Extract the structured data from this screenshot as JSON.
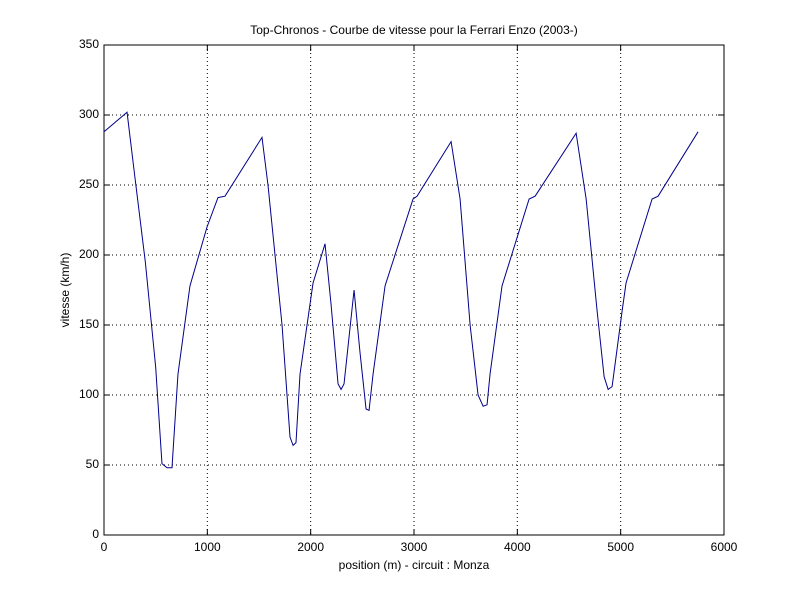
{
  "chart_data": {
    "type": "line",
    "title": "Top-Chronos - Courbe de vitesse pour la Ferrari Enzo (2003-)",
    "x_label": "position (m) - circuit : Monza",
    "y_label": "vitesse (km/h)",
    "x": [
      0,
      223,
      300,
      400,
      500,
      561,
      610,
      658,
      716,
      832,
      997,
      1103,
      1171,
      1529,
      1587,
      1723,
      1800,
      1830,
      1858,
      1897,
      2023,
      2139,
      2197,
      2265,
      2294,
      2323,
      2420,
      2478,
      2536,
      2565,
      2604,
      2720,
      2991,
      3030,
      3359,
      3446,
      3543,
      3620,
      3669,
      3707,
      3736,
      3852,
      4114,
      4172,
      4569,
      4666,
      4772,
      4840,
      4879,
      4917,
      5014,
      5052,
      5304,
      5362,
      5749
    ],
    "series": [
      {
        "name": "vitesse",
        "color": "#00008b",
        "values": [
          288,
          302,
          255,
          195,
          120,
          51,
          48,
          48,
          115,
          178,
          220,
          241,
          242,
          284,
          250,
          150,
          70,
          64,
          66,
          115,
          180,
          208,
          165,
          108,
          104,
          108,
          175,
          130,
          90,
          89,
          115,
          178,
          240,
          242,
          281,
          240,
          150,
          100,
          92,
          93,
          115,
          178,
          240,
          242,
          287,
          240,
          160,
          113,
          104,
          106,
          160,
          180,
          240,
          242,
          288
        ]
      }
    ],
    "xlim": [
      0,
      6000
    ],
    "xticks": [
      0,
      1000,
      2000,
      3000,
      4000,
      5000,
      6000
    ],
    "ylim": [
      0,
      350
    ],
    "yticks": [
      0,
      50,
      100,
      150,
      200,
      250,
      300,
      350
    ],
    "grid": true
  }
}
